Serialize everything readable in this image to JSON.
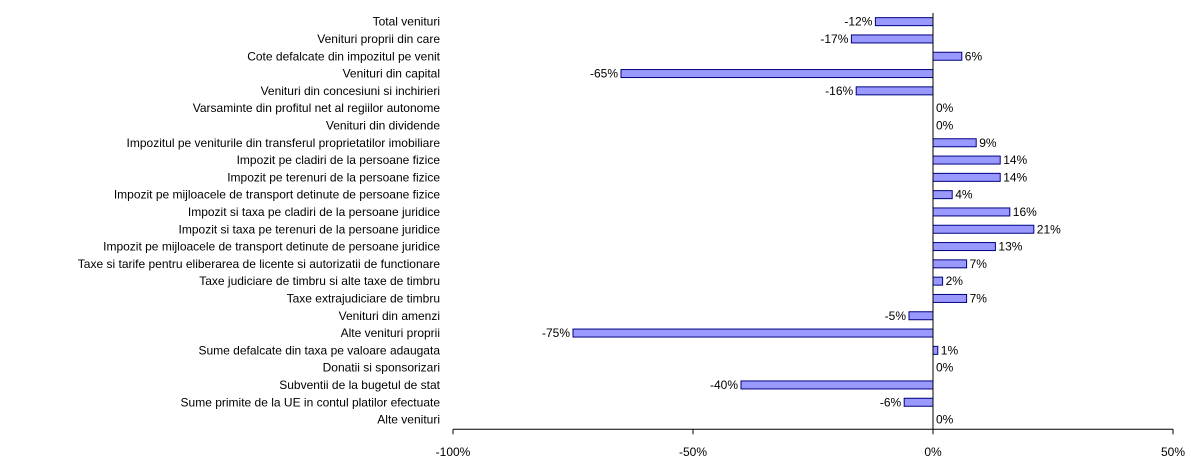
{
  "chart_data": {
    "type": "bar",
    "orientation": "horizontal",
    "categories": [
      "Total venituri",
      "Venituri proprii din care",
      "Cote defalcate din impozitul pe venit",
      "Venituri din capital",
      "Venituri din concesiuni si inchirieri",
      "Varsaminte din profitul net al regiilor autonome",
      "Venituri din dividende",
      "Impozitul pe veniturile din transferul proprietatilor imobiliare",
      "Impozit pe cladiri de la persoane fizice",
      "Impozit pe terenuri de la persoane fizice",
      "Impozit pe mijloacele de transport detinute de persoane fizice",
      "Impozit si taxa pe cladiri de la persoane juridice",
      "Impozit si taxa pe terenuri de la persoane juridice",
      "Impozit pe mijloacele de transport detinute de persoane juridice",
      "Taxe si tarife pentru eliberarea de licente si autorizatii de functionare",
      "Taxe judiciare de timbru si alte taxe de timbru",
      "Taxe extrajudiciare de timbru",
      "Venituri din amenzi",
      "Alte venituri proprii",
      "Sume defalcate din taxa pe valoare adaugata",
      "Donatii si sponsorizari",
      "Subventii de la bugetul de stat",
      "Sume primite de la UE in contul platilor efectuate",
      "Alte venituri"
    ],
    "values": [
      -12,
      -17,
      6,
      -65,
      -16,
      0,
      0,
      9,
      14,
      14,
      4,
      16,
      21,
      13,
      7,
      2,
      7,
      -5,
      -75,
      1,
      0,
      -40,
      -6,
      0
    ],
    "data_labels": [
      "-12%",
      "-17%",
      "6%",
      "-65%",
      "-16%",
      "0%",
      "0%",
      "9%",
      "14%",
      "14%",
      "4%",
      "16%",
      "21%",
      "13%",
      "7%",
      "2%",
      "7%",
      "-5%",
      "-75%",
      "1%",
      "0%",
      "-40%",
      "-6%",
      "0%"
    ],
    "x_ticks": [
      -100,
      -50,
      0,
      50
    ],
    "x_tick_labels": [
      "-100%",
      "-50%",
      "0%",
      "50%"
    ],
    "xlim": [
      -100,
      50
    ],
    "bar_color": "#9999ff",
    "bar_border": "#000080",
    "grid": false,
    "legend": "none"
  }
}
